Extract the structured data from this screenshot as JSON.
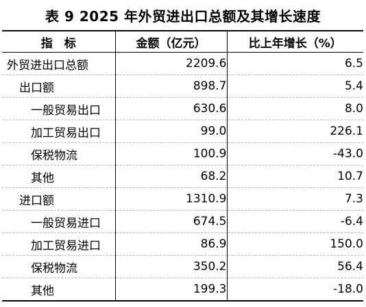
{
  "title": "表 9  2025 年外贸进出口总额及其增长速度",
  "headers": {
    "indicator": "指　标",
    "amount": "金额（亿元）",
    "growth": "比上年增长（%）"
  },
  "rows": [
    {
      "label": "外贸进出口总额",
      "level": 0,
      "amount": "2209.6",
      "growth": "6.5"
    },
    {
      "label": "出口额",
      "level": 1,
      "amount": "898.7",
      "growth": "5.4"
    },
    {
      "label": "一般贸易出口",
      "level": 2,
      "amount": "630.6",
      "growth": "8.0"
    },
    {
      "label": "加工贸易出口",
      "level": 2,
      "amount": "99.0",
      "growth": "226.1"
    },
    {
      "label": "保税物流",
      "level": 2,
      "amount": "100.9",
      "growth": "-43.0"
    },
    {
      "label": "其他",
      "level": 2,
      "amount": "68.2",
      "growth": "10.7"
    },
    {
      "label": "进口额",
      "level": 1,
      "amount": "1310.9",
      "growth": "7.3"
    },
    {
      "label": "一般贸易进口",
      "level": 2,
      "amount": "674.5",
      "growth": "-6.4"
    },
    {
      "label": "加工贸易进口",
      "level": 2,
      "amount": "86.9",
      "growth": "150.0"
    },
    {
      "label": "保税物流",
      "level": 2,
      "amount": "350.2",
      "growth": "56.4"
    },
    {
      "label": "其他",
      "level": 2,
      "amount": "199.3",
      "growth": "-18.0"
    }
  ]
}
